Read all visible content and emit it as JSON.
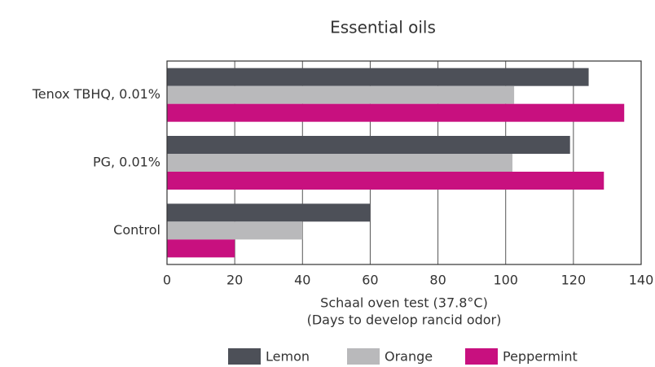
{
  "chart_data": {
    "type": "bar",
    "orientation": "horizontal",
    "title": "Essential oils",
    "xlabel": [
      "Schaal oven test (37.8°C)",
      "(Days to develop rancid odor)"
    ],
    "categories": [
      "Tenox TBHQ, 0.01%",
      "PG, 0.01%",
      "Control"
    ],
    "series": [
      {
        "name": "Lemon",
        "color": "#4d5058",
        "values": [
          124.5,
          119,
          60
        ]
      },
      {
        "name": "Orange",
        "color": "#b9b9bb",
        "values": [
          102.5,
          102,
          40
        ]
      },
      {
        "name": "Peppermint",
        "color": "#c8107f",
        "values": [
          135,
          129,
          20
        ]
      }
    ],
    "xlim": [
      0,
      140
    ],
    "xticks": [
      0,
      20,
      40,
      60,
      80,
      100,
      120,
      140
    ],
    "grid": true,
    "legend": "bottom"
  }
}
